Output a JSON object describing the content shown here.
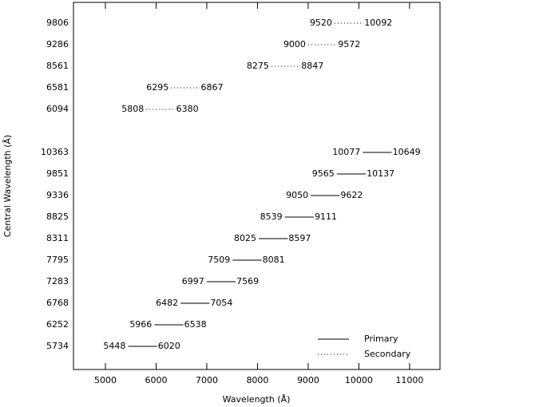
{
  "chart_data": {
    "type": "range",
    "x_label": "Wavelength (Å)",
    "y_label": "Central Wavelength (Å)",
    "categories": [
      "9806",
      "9286",
      "8561",
      "6581",
      "6094",
      null,
      "10363",
      "9851",
      "9336",
      "8825",
      "8311",
      "7795",
      "7283",
      "6768",
      "6252",
      "5734"
    ],
    "series": [
      {
        "name": "Primary",
        "color": "#000000",
        "dash": "solid",
        "low": [
          null,
          null,
          null,
          null,
          null,
          null,
          10077,
          9565,
          9050,
          8539,
          8025,
          7509,
          6997,
          6482,
          5966,
          5448
        ],
        "high": [
          null,
          null,
          null,
          null,
          null,
          null,
          10649,
          10137,
          9622,
          9111,
          8597,
          8081,
          7569,
          7054,
          6538,
          6020
        ]
      },
      {
        "name": "Secondary",
        "color": "#000000",
        "dash": "dotted",
        "low": [
          9520,
          9000,
          8275,
          6295,
          5808,
          null,
          null,
          null,
          null,
          null,
          null,
          null,
          null,
          null,
          null,
          null
        ],
        "high": [
          10092,
          9572,
          8847,
          6867,
          6380,
          null,
          null,
          null,
          null,
          null,
          null,
          null,
          null,
          null,
          null,
          null
        ]
      }
    ],
    "xlim": [
      4370,
      11600
    ],
    "xticks": [
      5000,
      6000,
      7000,
      8000,
      9000,
      10000,
      11000
    ],
    "legend": "lower-right"
  }
}
